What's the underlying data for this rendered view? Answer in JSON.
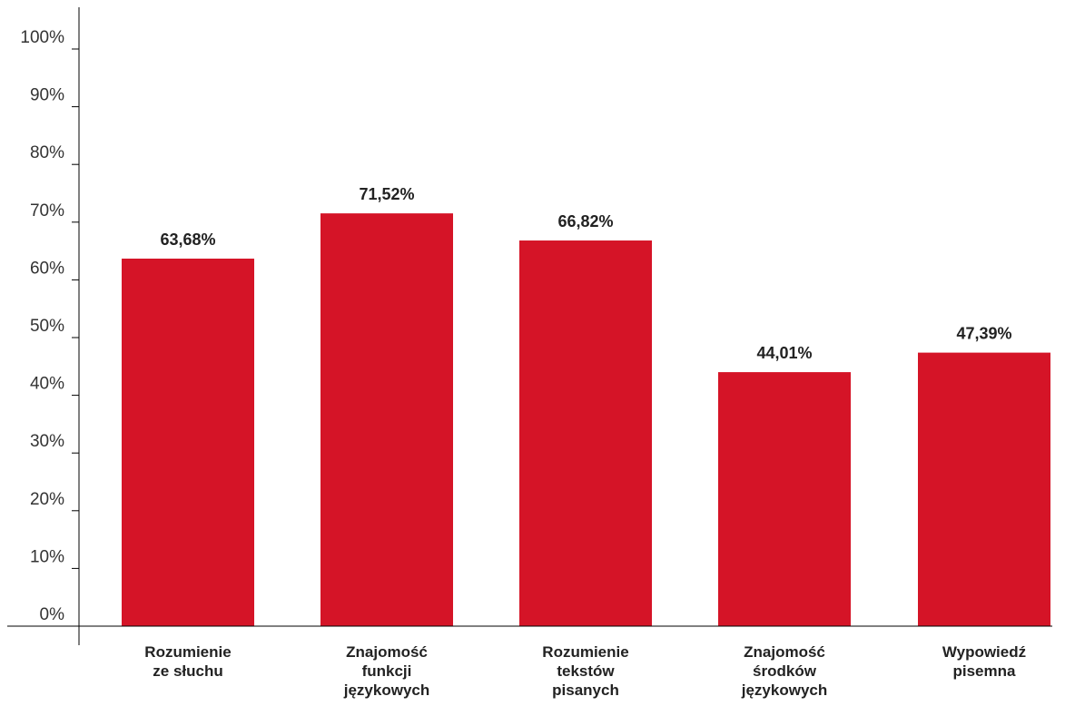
{
  "chart_data": {
    "type": "bar",
    "categories": [
      [
        "Rozumienie",
        "ze słuchu"
      ],
      [
        "Znajomość",
        "funkcji",
        "językowych"
      ],
      [
        "Rozumienie",
        "tekstów",
        "pisanych"
      ],
      [
        "Znajomość",
        "środków",
        "językowych"
      ],
      [
        "Wypowiedź",
        "pisemna"
      ]
    ],
    "values": [
      63.68,
      71.52,
      66.82,
      44.01,
      47.39
    ],
    "value_labels": [
      "63,68%",
      "71,52%",
      "66,82%",
      "44,01%",
      "47,39%"
    ],
    "ylim": [
      0,
      100
    ],
    "y_ticks": [
      0,
      10,
      20,
      30,
      40,
      50,
      60,
      70,
      80,
      90,
      100
    ],
    "y_tick_labels": [
      "0%",
      "10%",
      "20%",
      "30%",
      "40%",
      "50%",
      "60%",
      "70%",
      "80%",
      "90%",
      "100%"
    ],
    "bar_color": "#d51427",
    "axis_color": "#000000",
    "title": "",
    "xlabel": "",
    "ylabel": "",
    "grid": false,
    "legend": "none"
  }
}
